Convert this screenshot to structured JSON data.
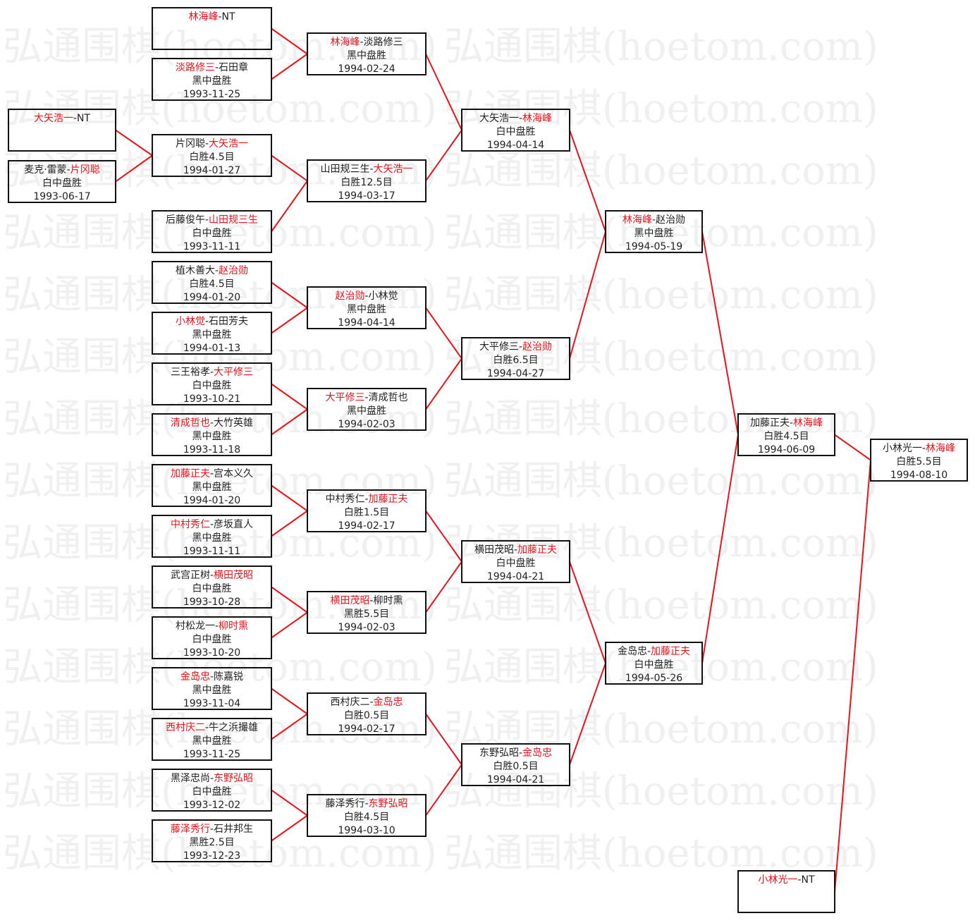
{
  "watermark": "弘通围棋(hoetom.com)",
  "colors": {
    "winner": "#e8141b",
    "connector": "#e8141b",
    "border": "#111111"
  },
  "matches": [
    {
      "p1": "大矢浩一",
      "p2": "NT",
      "winner": 1
    },
    {
      "p1": "麦克·雷蒙",
      "p2": "片冈聪",
      "winner": 2,
      "result": "白中盘胜",
      "date": "1993-06-17"
    },
    {
      "p1": "林海峰",
      "p2": "NT",
      "winner": 1
    },
    {
      "p1": "淡路修三",
      "p2": "石田章",
      "winner": 1,
      "result": "黑中盘胜",
      "date": "1993-11-25"
    },
    {
      "p1": "片冈聪",
      "p2": "大矢浩一",
      "winner": 2,
      "result": "白胜4.5目",
      "date": "1994-01-27"
    },
    {
      "p1": "后藤俊午",
      "p2": "山田规三生",
      "winner": 2,
      "result": "白中盘胜",
      "date": "1993-11-11"
    },
    {
      "p1": "植木善大",
      "p2": "赵治勋",
      "winner": 2,
      "result": "白胜4.5目",
      "date": "1994-01-20"
    },
    {
      "p1": "小林觉",
      "p2": "石田芳夫",
      "winner": 1,
      "result": "黑中盘胜",
      "date": "1994-01-13"
    },
    {
      "p1": "三王裕孝",
      "p2": "大平修三",
      "winner": 2,
      "result": "白中盘胜",
      "date": "1993-10-21"
    },
    {
      "p1": "清成哲也",
      "p2": "大竹英雄",
      "winner": 1,
      "result": "黑中盘胜",
      "date": "1993-11-18"
    },
    {
      "p1": "加藤正夫",
      "p2": "宫本义久",
      "winner": 1,
      "result": "黑中盘胜",
      "date": "1994-01-20"
    },
    {
      "p1": "中村秀仁",
      "p2": "彦坂直人",
      "winner": 1,
      "result": "黑中盘胜",
      "date": "1993-11-11"
    },
    {
      "p1": "武宫正树",
      "p2": "横田茂昭",
      "winner": 2,
      "result": "白中盘胜",
      "date": "1993-10-28"
    },
    {
      "p1": "村松龙一",
      "p2": "柳时熏",
      "winner": 2,
      "result": "白中盘胜",
      "date": "1993-10-20"
    },
    {
      "p1": "金岛忠",
      "p2": "陈嘉锐",
      "winner": 1,
      "result": "黑中盘胜",
      "date": "1993-11-04"
    },
    {
      "p1": "西村庆二",
      "p2": "牛之浜撮雄",
      "winner": 1,
      "result": "黑中盘胜",
      "date": "1993-11-25"
    },
    {
      "p1": "黑泽忠尚",
      "p2": "东野弘昭",
      "winner": 2,
      "result": "白中盘胜",
      "date": "1993-12-02"
    },
    {
      "p1": "藤泽秀行",
      "p2": "石井邦生",
      "winner": 1,
      "result": "黑胜2.5目",
      "date": "1993-12-23"
    },
    {
      "p1": "林海峰",
      "p2": "淡路修三",
      "winner": 1,
      "result": "黑中盘胜",
      "date": "1994-02-24"
    },
    {
      "p1": "山田规三生",
      "p2": "大矢浩一",
      "winner": 2,
      "result": "白胜12.5目",
      "date": "1994-03-17"
    },
    {
      "p1": "赵治勋",
      "p2": "小林觉",
      "winner": 1,
      "result": "黑中盘胜",
      "date": "1994-04-14"
    },
    {
      "p1": "大平修三",
      "p2": "清成哲也",
      "winner": 1,
      "result": "黑中盘胜",
      "date": "1994-02-03"
    },
    {
      "p1": "中村秀仁",
      "p2": "加藤正夫",
      "winner": 2,
      "result": "白胜1.5目",
      "date": "1994-02-17"
    },
    {
      "p1": "横田茂昭",
      "p2": "柳时熏",
      "winner": 1,
      "result": "黑胜5.5目",
      "date": "1994-02-03"
    },
    {
      "p1": "西村庆二",
      "p2": "金岛忠",
      "winner": 2,
      "result": "白胜0.5目",
      "date": "1994-02-17"
    },
    {
      "p1": "藤泽秀行",
      "p2": "东野弘昭",
      "winner": 2,
      "result": "白胜4.5目",
      "date": "1994-03-10"
    },
    {
      "p1": "大矢浩一",
      "p2": "林海峰",
      "winner": 2,
      "result": "白中盘胜",
      "date": "1994-04-14"
    },
    {
      "p1": "大平修三",
      "p2": "赵治勋",
      "winner": 2,
      "result": "白胜6.5目",
      "date": "1994-04-27"
    },
    {
      "p1": "横田茂昭",
      "p2": "加藤正夫",
      "winner": 2,
      "result": "白中盘胜",
      "date": "1994-04-21"
    },
    {
      "p1": "东野弘昭",
      "p2": "金岛忠",
      "winner": 2,
      "result": "白胜0.5目",
      "date": "1994-04-21"
    },
    {
      "p1": "林海峰",
      "p2": "赵治勋",
      "winner": 1,
      "result": "黑中盘胜",
      "date": "1994-05-19"
    },
    {
      "p1": "金岛忠",
      "p2": "加藤正夫",
      "winner": 2,
      "result": "白中盘胜",
      "date": "1994-05-26"
    },
    {
      "p1": "加藤正夫",
      "p2": "林海峰",
      "winner": 2,
      "result": "白胜4.5目",
      "date": "1994-06-09"
    },
    {
      "p1": "小林光一",
      "p2": "NT",
      "winner": 1
    },
    {
      "p1": "小林光一",
      "p2": "林海峰",
      "winner": 2,
      "result": "白胜5.5目",
      "date": "1994-08-10"
    }
  ]
}
